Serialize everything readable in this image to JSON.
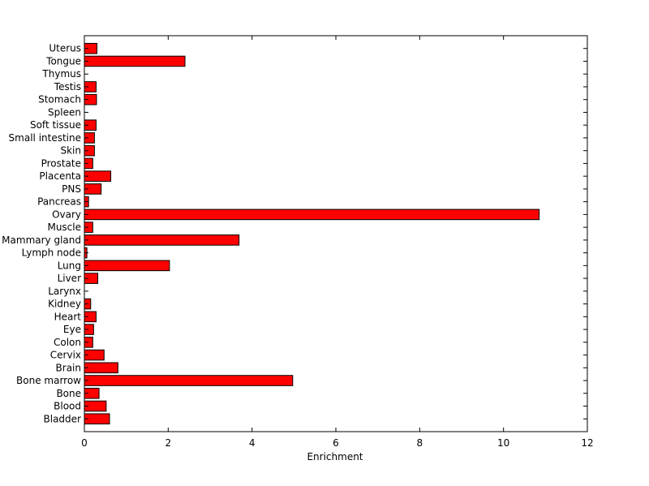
{
  "chart_data": {
    "type": "bar",
    "orientation": "horizontal",
    "title": "",
    "xlabel": "Enrichment",
    "ylabel": "",
    "xlim": [
      0,
      12
    ],
    "xticks": [
      0,
      2,
      4,
      6,
      8,
      10,
      12
    ],
    "grid": false,
    "legend": "none",
    "bar_color": "#ff0000",
    "bar_edge_color": "#000000",
    "categories": [
      "Bladder",
      "Blood",
      "Bone",
      "Bone marrow",
      "Brain",
      "Cervix",
      "Colon",
      "Eye",
      "Heart",
      "Kidney",
      "Larynx",
      "Liver",
      "Lung",
      "Lymph node",
      "Mammary gland",
      "Muscle",
      "Ovary",
      "Pancreas",
      "PNS",
      "Placenta",
      "Prostate",
      "Skin",
      "Small intestine",
      "Soft tissue",
      "Spleen",
      "Stomach",
      "Testis",
      "Thymus",
      "Tongue",
      "Uterus"
    ],
    "values": [
      0.6,
      0.52,
      0.35,
      4.97,
      0.8,
      0.47,
      0.2,
      0.22,
      0.28,
      0.15,
      0.0,
      0.32,
      2.03,
      0.06,
      3.69,
      0.2,
      10.85,
      0.1,
      0.4,
      0.63,
      0.2,
      0.24,
      0.24,
      0.28,
      0.0,
      0.29,
      0.28,
      0.0,
      2.4,
      0.3
    ]
  }
}
